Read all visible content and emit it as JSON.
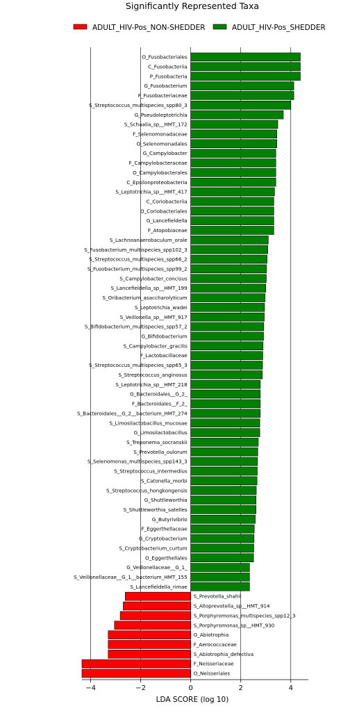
{
  "chart_data": {
    "type": "bar",
    "orientation": "horizontal",
    "title": "Significantly Represented Taxa",
    "xlabel": "LDA SCORE (log 10)",
    "xlim": [
      -4.35,
      4.7
    ],
    "xticks": [
      -4,
      -2,
      0,
      2,
      4
    ],
    "xtick_labels": [
      "−4",
      "−2",
      "0",
      "2",
      "4"
    ],
    "grid": "vertical lines at x ticks",
    "legend_position": "top",
    "series": [
      {
        "name": "ADULT_HIV-Pos_NON-SHEDDER",
        "color": "#ff0000"
      },
      {
        "name": "ADULT_HIV-Pos_SHEDDER",
        "color": "#008000"
      }
    ],
    "bars": [
      {
        "label": "O_Fusobacteriales",
        "value": 4.38,
        "group": 1
      },
      {
        "label": "C_Fusobacteriia",
        "value": 4.38,
        "group": 1
      },
      {
        "label": "P_Fusobacteria",
        "value": 4.38,
        "group": 1
      },
      {
        "label": "G_Fusobacterium",
        "value": 4.12,
        "group": 1
      },
      {
        "label": "F_Fusobacteriaceae",
        "value": 4.12,
        "group": 1
      },
      {
        "label": "S_Streptococcus_multispecies_spp80_3",
        "value": 4.0,
        "group": 1
      },
      {
        "label": "G_Pseudoleptotrichia",
        "value": 3.7,
        "group": 1
      },
      {
        "label": "S_Schaalia_sp__HMT_172",
        "value": 3.48,
        "group": 1
      },
      {
        "label": "F_Selenomonadaceae",
        "value": 3.44,
        "group": 1
      },
      {
        "label": "O_Selenomonadales",
        "value": 3.44,
        "group": 1
      },
      {
        "label": "G_Campylobacter",
        "value": 3.4,
        "group": 1
      },
      {
        "label": "F_Campylobacteraceae",
        "value": 3.4,
        "group": 1
      },
      {
        "label": "O_Campylobacterales",
        "value": 3.4,
        "group": 1
      },
      {
        "label": "C_Epsilonproteobacteria",
        "value": 3.4,
        "group": 1
      },
      {
        "label": "S_Leptotrichia_sp__HMT_417",
        "value": 3.35,
        "group": 1
      },
      {
        "label": "C_Coriobacteriia",
        "value": 3.32,
        "group": 1
      },
      {
        "label": "O_Coriobacteriales",
        "value": 3.32,
        "group": 1
      },
      {
        "label": "G_Lancefieldella",
        "value": 3.32,
        "group": 1
      },
      {
        "label": "F_Atopobiaceae",
        "value": 3.32,
        "group": 1
      },
      {
        "label": "S_Lachnoanaerobaculum_orale",
        "value": 3.1,
        "group": 1
      },
      {
        "label": "S_Fusobacterium_multispecies_spp102_3",
        "value": 3.08,
        "group": 1
      },
      {
        "label": "S_Streptococcus_multispecies_spp66_2",
        "value": 3.05,
        "group": 1
      },
      {
        "label": "S_Fusobacterium_multispecies_spp99_2",
        "value": 3.03,
        "group": 1
      },
      {
        "label": "S_Campylobacter_concisus",
        "value": 3.02,
        "group": 1
      },
      {
        "label": "S_Lancefieldella_sp__HMT_199",
        "value": 3.0,
        "group": 1
      },
      {
        "label": "S_Oribacterium_asaccharolyticum",
        "value": 2.97,
        "group": 1
      },
      {
        "label": "S_Leptotrichia_wadei",
        "value": 2.95,
        "group": 1
      },
      {
        "label": "S_Veillonella_sp__HMT_917",
        "value": 2.94,
        "group": 1
      },
      {
        "label": "S_Bifidobacterium_multispecies_spp57_2",
        "value": 2.92,
        "group": 1
      },
      {
        "label": "G_Bifidobacterium",
        "value": 2.91,
        "group": 1
      },
      {
        "label": "S_Campylobacter_gracilis",
        "value": 2.89,
        "group": 1
      },
      {
        "label": "F_Lactobacillaceae",
        "value": 2.88,
        "group": 1
      },
      {
        "label": "S_Streptococcus_multispecies_spp65_3",
        "value": 2.87,
        "group": 1
      },
      {
        "label": "S_Streptococcus_anginosus",
        "value": 2.86,
        "group": 1
      },
      {
        "label": "S_Leptotrichia_sp__HMT_218",
        "value": 2.78,
        "group": 1
      },
      {
        "label": "G_Bacteroidales__G_2_",
        "value": 2.78,
        "group": 1
      },
      {
        "label": "F_Bacteroidales__F_2_",
        "value": 2.78,
        "group": 1
      },
      {
        "label": "S_Bacteroidales__G_2__bacterium_HMT_274",
        "value": 2.78,
        "group": 1
      },
      {
        "label": "S_Limosilactobacillus_mucosae",
        "value": 2.76,
        "group": 1
      },
      {
        "label": "G_Limosilactobacillus",
        "value": 2.76,
        "group": 1
      },
      {
        "label": "S_Treponema_socranskii",
        "value": 2.7,
        "group": 1
      },
      {
        "label": "S_Prevotella_oulorum",
        "value": 2.68,
        "group": 1
      },
      {
        "label": "S_Selenomonas_multispecies_spp143_3",
        "value": 2.67,
        "group": 1
      },
      {
        "label": "S_Streptococcus_intermedius",
        "value": 2.66,
        "group": 1
      },
      {
        "label": "S_Catonella_morbi",
        "value": 2.65,
        "group": 1
      },
      {
        "label": "S_Streptococcus_hongkongensis",
        "value": 2.62,
        "group": 1
      },
      {
        "label": "G_Shuttleworthia",
        "value": 2.61,
        "group": 1
      },
      {
        "label": "S_Shuttleworthia_satelles",
        "value": 2.61,
        "group": 1
      },
      {
        "label": "G_Butyrivibrio",
        "value": 2.58,
        "group": 1
      },
      {
        "label": "F_Eggerthellaceae",
        "value": 2.54,
        "group": 1
      },
      {
        "label": "G_Cryptobacterium",
        "value": 2.53,
        "group": 1
      },
      {
        "label": "S_Cryptobacterium_curtum",
        "value": 2.52,
        "group": 1
      },
      {
        "label": "O_Eggerthellales",
        "value": 2.51,
        "group": 1
      },
      {
        "label": "G_Veillonellaceae__G_1_",
        "value": 2.35,
        "group": 1
      },
      {
        "label": "S_Veillonellaceae__G_1__bacterium_HMT_155",
        "value": 2.35,
        "group": 1
      },
      {
        "label": "S_Lancefieldella_rimae",
        "value": 2.35,
        "group": 1
      },
      {
        "label": "S_Prevotella_shahii",
        "value": -2.62,
        "group": 0
      },
      {
        "label": "S_Alloprevotella_sp__HMT_914",
        "value": -2.7,
        "group": 0
      },
      {
        "label": "S_Porphyromonas_multispecies_spp12_3",
        "value": -2.82,
        "group": 0
      },
      {
        "label": "S_Porphyromonas_sp__HMT_930",
        "value": -3.05,
        "group": 0
      },
      {
        "label": "G_Abiotrophia",
        "value": -3.3,
        "group": 0
      },
      {
        "label": "F_Aerococcaceae",
        "value": -3.3,
        "group": 0
      },
      {
        "label": "S_Abiotrophia_defectiva",
        "value": -3.3,
        "group": 0
      },
      {
        "label": "F_Neisseriaceae",
        "value": -4.35,
        "group": 0
      },
      {
        "label": "O_Neisseriales",
        "value": -4.35,
        "group": 0
      }
    ]
  }
}
